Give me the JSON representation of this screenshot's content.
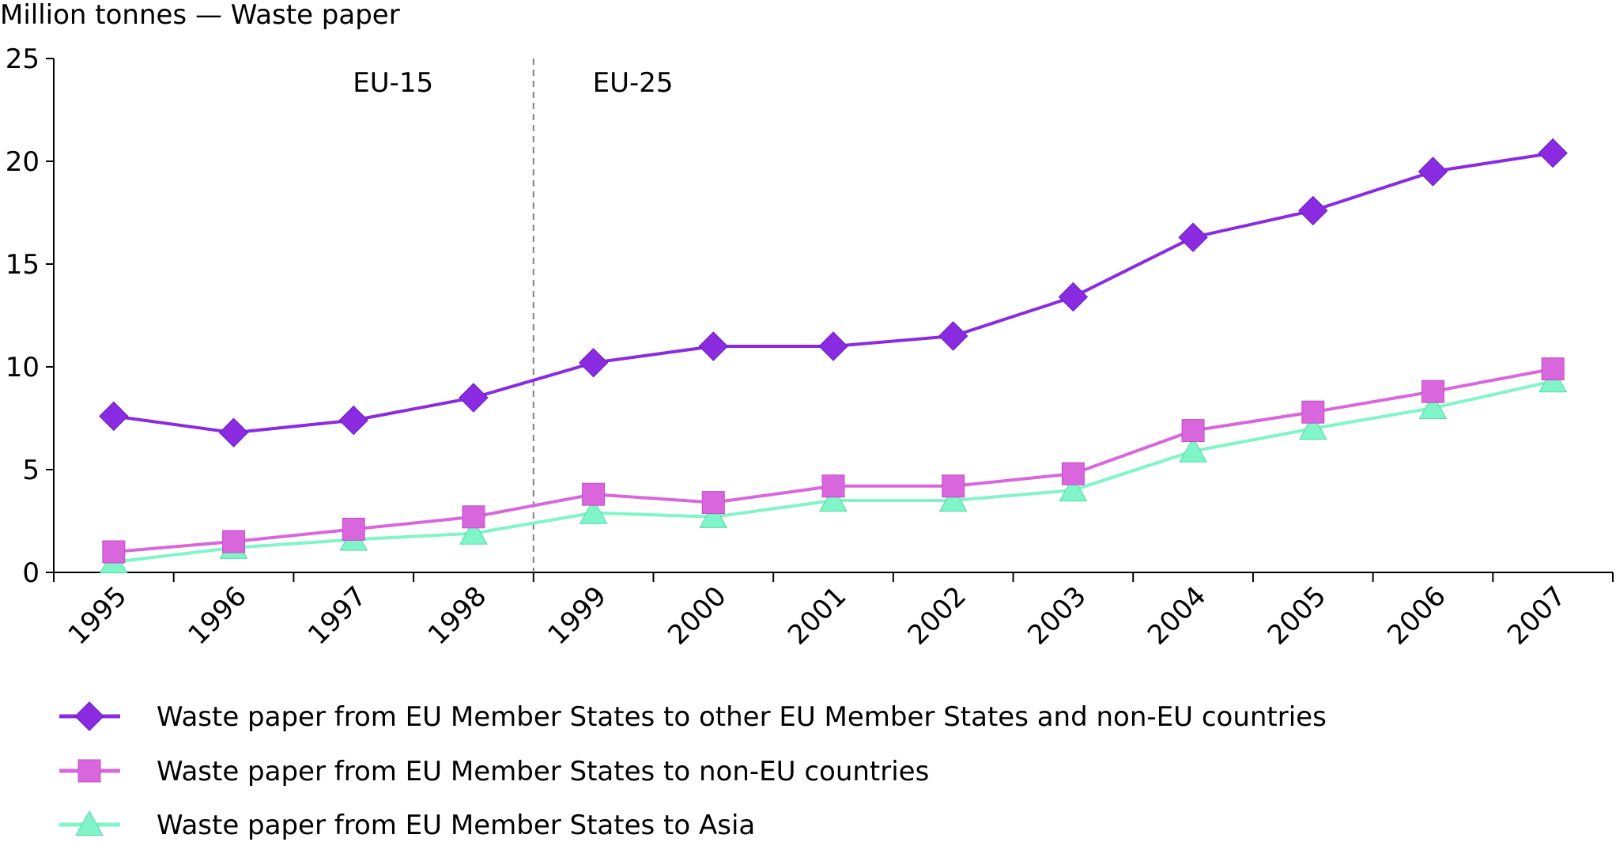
{
  "chart_data": {
    "type": "line",
    "ylabel": "Million tonnes — Waste paper",
    "xlabel": "",
    "categories": [
      "1995",
      "1996",
      "1997",
      "1998",
      "1999",
      "2000",
      "2001",
      "2002",
      "2003",
      "2004",
      "2005",
      "2006",
      "2007"
    ],
    "ylim": [
      0,
      25
    ],
    "yticks": [
      "0",
      "5",
      "10",
      "15",
      "20",
      "25"
    ],
    "grid": false,
    "legend_position": "bottom",
    "annotations": {
      "left_period": "EU-15",
      "right_period": "EU-25",
      "divider_between": [
        "1998",
        "1999"
      ]
    },
    "series": [
      {
        "name": "Waste paper from EU Member States to other EU Member States and non-EU countries",
        "color": "#8a2be2",
        "marker": "diamond",
        "values": [
          7.6,
          6.8,
          7.4,
          8.5,
          10.2,
          11.0,
          11.0,
          11.5,
          13.4,
          16.3,
          17.6,
          19.5,
          20.4
        ]
      },
      {
        "name": "Waste paper from EU Member States to non-EU countries",
        "color": "#d966dd",
        "marker": "square",
        "values": [
          1.0,
          1.5,
          2.1,
          2.7,
          3.8,
          3.4,
          4.2,
          4.2,
          4.8,
          6.9,
          7.8,
          8.8,
          9.9
        ]
      },
      {
        "name": "Waste paper from EU Member States to Asia",
        "color": "#7ff5c8",
        "marker": "triangle",
        "values": [
          0.5,
          1.2,
          1.6,
          1.9,
          2.9,
          2.7,
          3.5,
          3.5,
          4.0,
          5.9,
          7.0,
          8.0,
          9.3
        ]
      }
    ]
  }
}
